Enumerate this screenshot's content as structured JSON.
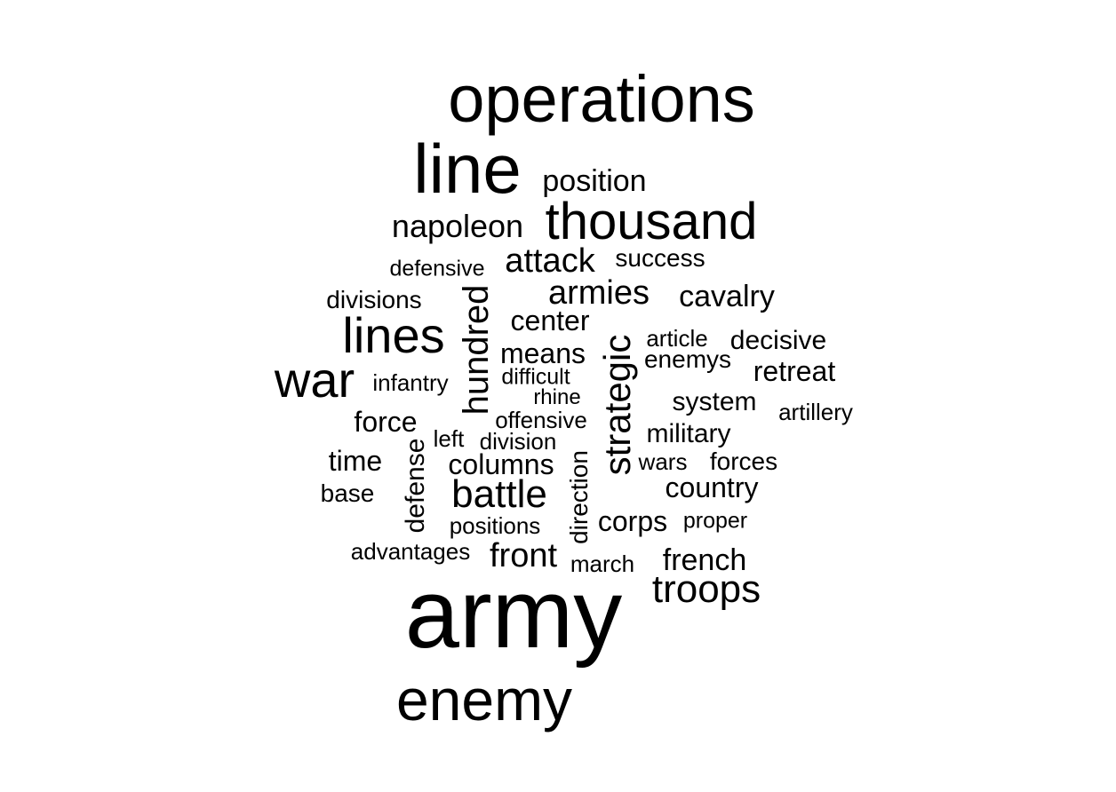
{
  "words": [
    {
      "text": "army",
      "weight": 1.0,
      "vertical": false
    },
    {
      "text": "operations",
      "weight": 0.78,
      "vertical": false
    },
    {
      "text": "line",
      "weight": 0.74,
      "vertical": false
    },
    {
      "text": "enemy",
      "weight": 0.62,
      "vertical": false
    },
    {
      "text": "thousand",
      "weight": 0.55,
      "vertical": false
    },
    {
      "text": "lines",
      "weight": 0.52,
      "vertical": false
    },
    {
      "text": "war",
      "weight": 0.52,
      "vertical": false
    },
    {
      "text": "battle",
      "weight": 0.44,
      "vertical": false
    },
    {
      "text": "troops",
      "weight": 0.42,
      "vertical": false
    },
    {
      "text": "strategic",
      "weight": 0.4,
      "vertical": true
    },
    {
      "text": "hundred",
      "weight": 0.38,
      "vertical": true
    },
    {
      "text": "attack",
      "weight": 0.36,
      "vertical": false
    },
    {
      "text": "armies",
      "weight": 0.36,
      "vertical": false
    },
    {
      "text": "napoleon",
      "weight": 0.35,
      "vertical": false
    },
    {
      "text": "front",
      "weight": 0.35,
      "vertical": false
    },
    {
      "text": "position",
      "weight": 0.33,
      "vertical": false
    },
    {
      "text": "cavalry",
      "weight": 0.33,
      "vertical": false
    },
    {
      "text": "french",
      "weight": 0.33,
      "vertical": false
    },
    {
      "text": "means",
      "weight": 0.32,
      "vertical": false
    },
    {
      "text": "center",
      "weight": 0.31,
      "vertical": false
    },
    {
      "text": "force",
      "weight": 0.31,
      "vertical": false
    },
    {
      "text": "retreat",
      "weight": 0.31,
      "vertical": false
    },
    {
      "text": "time",
      "weight": 0.31,
      "vertical": false
    },
    {
      "text": "columns",
      "weight": 0.31,
      "vertical": false
    },
    {
      "text": "country",
      "weight": 0.31,
      "vertical": false
    },
    {
      "text": "corps",
      "weight": 0.31,
      "vertical": false
    },
    {
      "text": "defense",
      "weight": 0.29,
      "vertical": true
    },
    {
      "text": "decisive",
      "weight": 0.28,
      "vertical": false
    },
    {
      "text": "system",
      "weight": 0.28,
      "vertical": false
    },
    {
      "text": "military",
      "weight": 0.28,
      "vertical": false
    },
    {
      "text": "divisions",
      "weight": 0.27,
      "vertical": false
    },
    {
      "text": "success",
      "weight": 0.27,
      "vertical": false
    },
    {
      "text": "enemys",
      "weight": 0.27,
      "vertical": false
    },
    {
      "text": "base",
      "weight": 0.27,
      "vertical": false
    },
    {
      "text": "forces",
      "weight": 0.27,
      "vertical": false
    },
    {
      "text": "direction",
      "weight": 0.25,
      "vertical": true
    },
    {
      "text": "infantry",
      "weight": 0.25,
      "vertical": false
    },
    {
      "text": "division",
      "weight": 0.25,
      "vertical": false
    },
    {
      "text": "positions",
      "weight": 0.25,
      "vertical": false
    },
    {
      "text": "article",
      "weight": 0.24,
      "vertical": false
    },
    {
      "text": "offensive",
      "weight": 0.24,
      "vertical": false
    },
    {
      "text": "left",
      "weight": 0.24,
      "vertical": false
    },
    {
      "text": "artillery",
      "weight": 0.24,
      "vertical": false
    },
    {
      "text": "wars",
      "weight": 0.24,
      "vertical": false
    },
    {
      "text": "march",
      "weight": 0.24,
      "vertical": false
    },
    {
      "text": "advantages",
      "weight": 0.24,
      "vertical": false
    },
    {
      "text": "defensive",
      "weight": 0.23,
      "vertical": false
    },
    {
      "text": "difficult",
      "weight": 0.23,
      "vertical": false
    },
    {
      "text": "proper",
      "weight": 0.23,
      "vertical": false
    },
    {
      "text": "rhine",
      "weight": 0.22,
      "vertical": false
    }
  ]
}
